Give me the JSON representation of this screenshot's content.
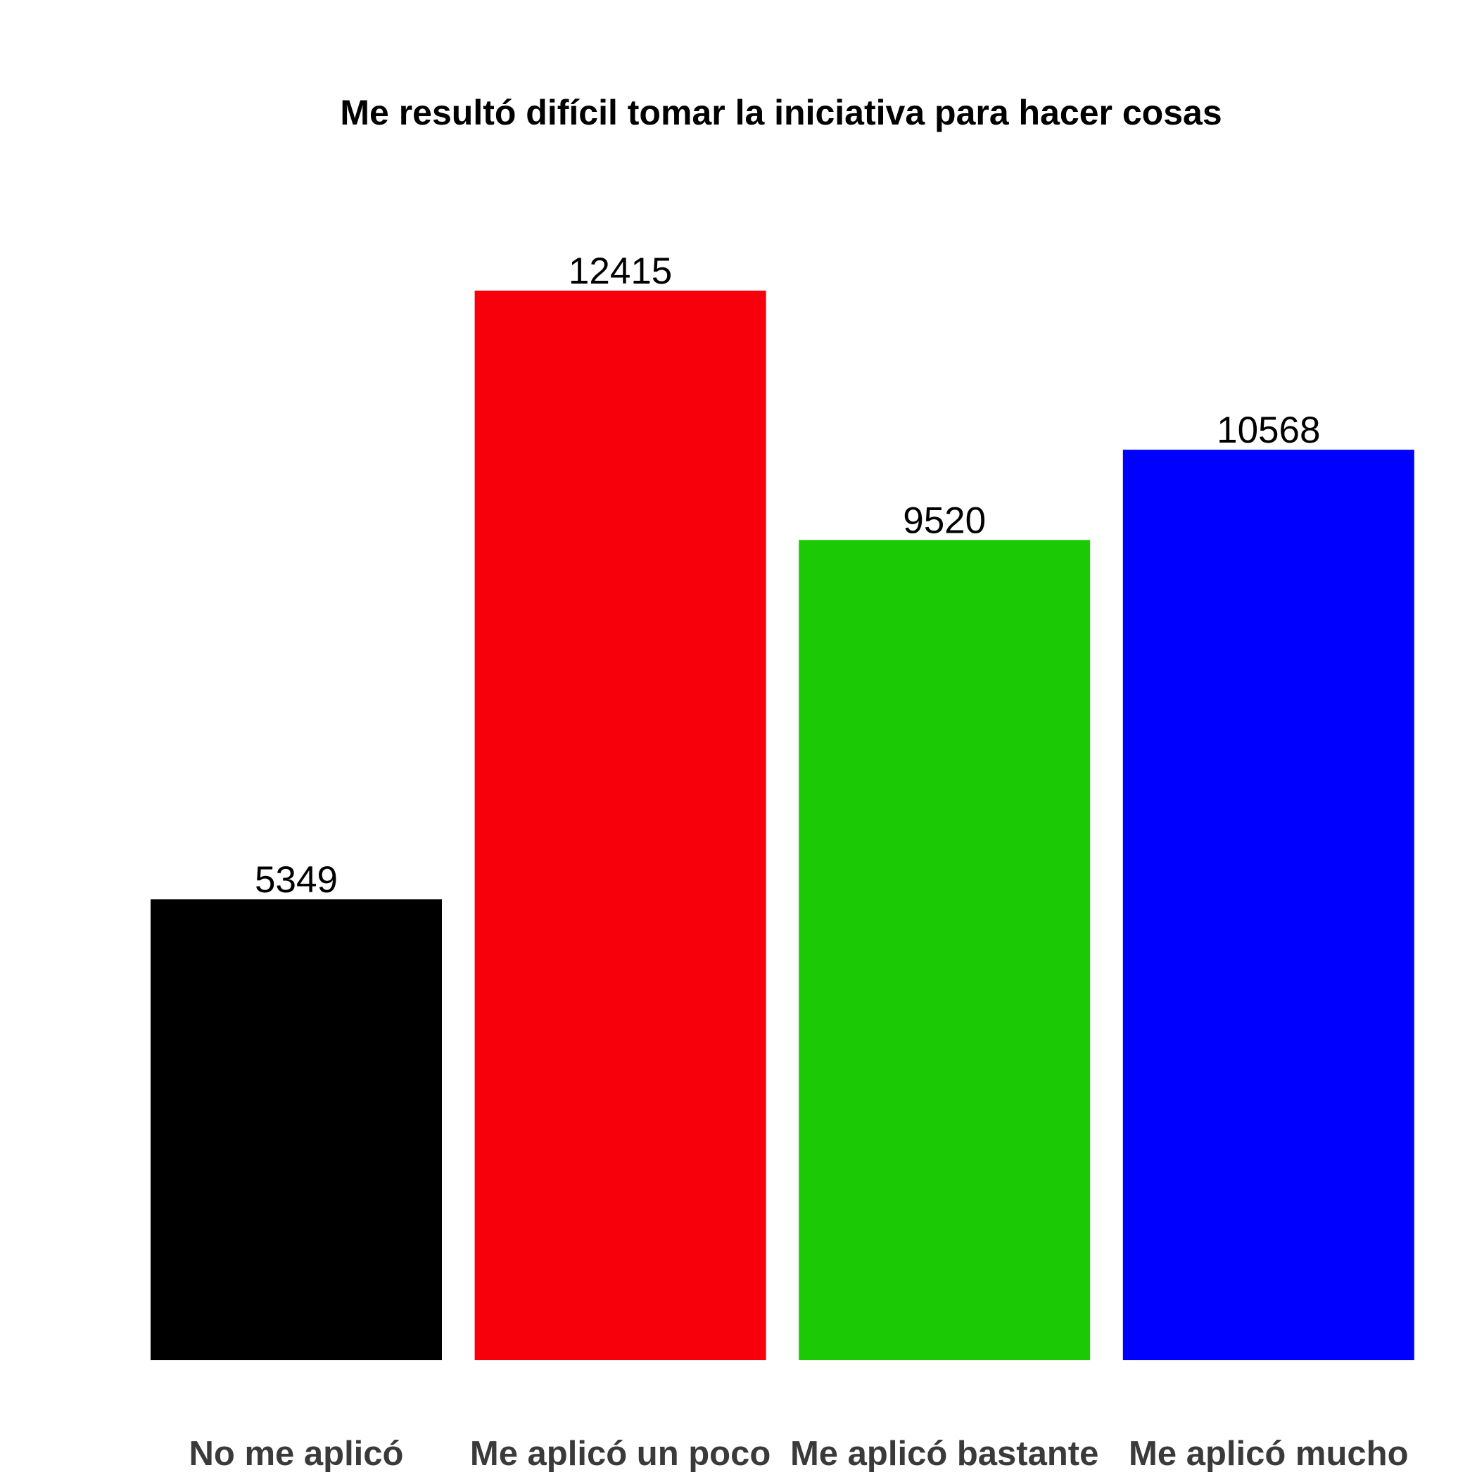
{
  "chart_data": {
    "type": "bar",
    "title": "Me resultó difícil tomar la iniciativa para hacer cosas",
    "xlabel": "",
    "ylabel": "",
    "categories": [
      "No me aplicó",
      "Me aplicó un poco",
      "Me aplicó bastante",
      "Me aplicó mucho"
    ],
    "values": [
      5349,
      12415,
      9520,
      10568
    ],
    "value_labels": [
      "5349",
      "12415",
      "9520",
      "10568"
    ],
    "colors": [
      "#000000",
      "#f8000b",
      "#1bc905",
      "#0000fe"
    ],
    "ylim": [
      0,
      12415
    ],
    "grid": false,
    "legend": "none"
  }
}
